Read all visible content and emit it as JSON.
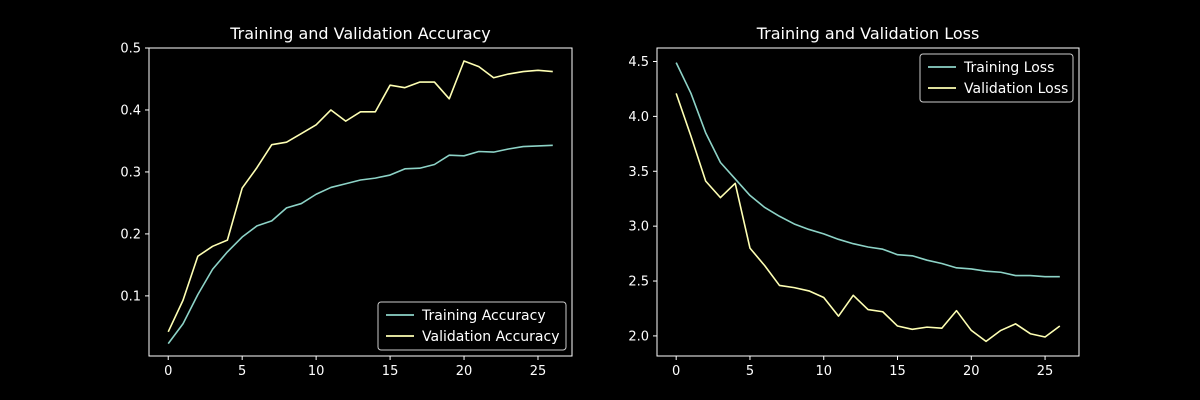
{
  "chart_data": [
    {
      "type": "line",
      "title": "Training and Validation Accuracy",
      "xlabel": "",
      "ylabel": "",
      "xlim": [
        -1.3,
        27.3
      ],
      "ylim": [
        0.003,
        0.5
      ],
      "xticks": [
        0,
        5,
        10,
        15,
        20,
        25
      ],
      "yticks": [
        0.1,
        0.2,
        0.3,
        0.4,
        0.5
      ],
      "grid": false,
      "legend": "lower-right",
      "x": [
        0,
        1,
        2,
        3,
        4,
        5,
        6,
        7,
        8,
        9,
        10,
        11,
        12,
        13,
        14,
        15,
        16,
        17,
        18,
        19,
        20,
        21,
        22,
        23,
        24,
        25,
        26
      ],
      "series": [
        {
          "name": "Training Accuracy",
          "color": "#8dd3c7",
          "values": [
            0.023,
            0.055,
            0.102,
            0.143,
            0.171,
            0.195,
            0.213,
            0.221,
            0.242,
            0.249,
            0.264,
            0.275,
            0.281,
            0.287,
            0.29,
            0.295,
            0.305,
            0.306,
            0.312,
            0.327,
            0.326,
            0.333,
            0.332,
            0.337,
            0.341,
            0.342,
            0.343
          ]
        },
        {
          "name": "Validation Accuracy",
          "color": "#feffb3",
          "values": [
            0.042,
            0.093,
            0.164,
            0.18,
            0.19,
            0.274,
            0.307,
            0.344,
            0.348,
            0.362,
            0.376,
            0.4,
            0.382,
            0.397,
            0.397,
            0.44,
            0.436,
            0.445,
            0.445,
            0.418,
            0.479,
            0.47,
            0.452,
            0.458,
            0.462,
            0.464,
            0.462
          ]
        }
      ]
    },
    {
      "type": "line",
      "title": "Training and Validation Loss",
      "xlabel": "",
      "ylabel": "",
      "xlim": [
        -1.3,
        27.3
      ],
      "ylim": [
        1.817,
        4.623
      ],
      "xticks": [
        0,
        5,
        10,
        15,
        20,
        25
      ],
      "yticks": [
        2.0,
        2.5,
        3.0,
        3.5,
        4.0,
        4.5
      ],
      "grid": false,
      "legend": "upper-right",
      "x": [
        0,
        1,
        2,
        3,
        4,
        5,
        6,
        7,
        8,
        9,
        10,
        11,
        12,
        13,
        14,
        15,
        16,
        17,
        18,
        19,
        20,
        21,
        22,
        23,
        24,
        25,
        26
      ],
      "series": [
        {
          "name": "Training Loss",
          "color": "#8dd3c7",
          "values": [
            4.49,
            4.21,
            3.85,
            3.58,
            3.43,
            3.28,
            3.17,
            3.09,
            3.02,
            2.97,
            2.93,
            2.88,
            2.84,
            2.81,
            2.79,
            2.74,
            2.73,
            2.69,
            2.66,
            2.62,
            2.61,
            2.59,
            2.58,
            2.55,
            2.55,
            2.54,
            2.54
          ]
        },
        {
          "name": "Validation Loss",
          "color": "#feffb3",
          "values": [
            4.21,
            3.82,
            3.41,
            3.26,
            3.39,
            2.8,
            2.64,
            2.46,
            2.44,
            2.41,
            2.35,
            2.18,
            2.37,
            2.24,
            2.22,
            2.09,
            2.06,
            2.08,
            2.07,
            2.23,
            2.05,
            1.95,
            2.05,
            2.11,
            2.02,
            1.99,
            2.09
          ]
        }
      ]
    }
  ]
}
